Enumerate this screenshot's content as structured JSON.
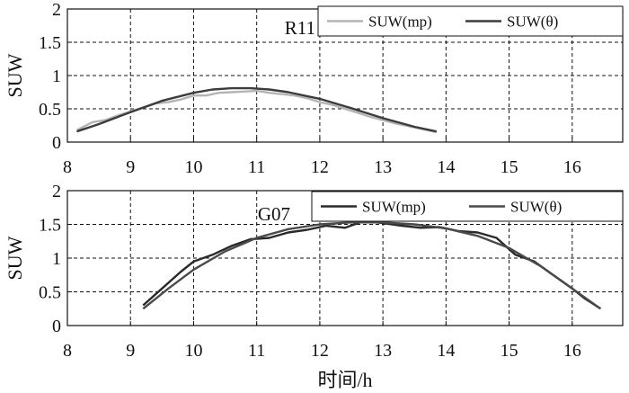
{
  "chart_data": [
    {
      "type": "line",
      "label": "R11",
      "ylabel": "SUW",
      "xlim": [
        8,
        16.8
      ],
      "ylim": [
        0,
        2
      ],
      "xticks": [
        8,
        9,
        10,
        11,
        12,
        13,
        14,
        15,
        16
      ],
      "yticks": [
        0,
        0.5,
        1,
        1.5,
        2
      ],
      "ytick_labels": [
        "0",
        "0.5",
        "1",
        "1.5",
        "2"
      ],
      "grid": true,
      "legend_position": "top-right",
      "series": [
        {
          "name": "SUW(mp)",
          "color": "#b4b4b4",
          "x": [
            8.15,
            8.4,
            8.6,
            8.8,
            9.0,
            9.2,
            9.4,
            9.6,
            9.8,
            10.0,
            10.2,
            10.4,
            10.6,
            10.8,
            11.0,
            11.2,
            11.4,
            11.6,
            11.8,
            12.0,
            12.2,
            12.4,
            12.6,
            12.8,
            13.0,
            13.2,
            13.4,
            13.6,
            13.85
          ],
          "y": [
            0.18,
            0.3,
            0.33,
            0.4,
            0.46,
            0.52,
            0.58,
            0.6,
            0.64,
            0.7,
            0.7,
            0.74,
            0.75,
            0.76,
            0.77,
            0.74,
            0.72,
            0.7,
            0.66,
            0.6,
            0.56,
            0.5,
            0.44,
            0.38,
            0.33,
            0.28,
            0.24,
            0.2,
            0.15
          ]
        },
        {
          "name": "SUW(θ)",
          "color": "#3c3c3c",
          "x": [
            8.15,
            8.5,
            9.0,
            9.5,
            10.0,
            10.3,
            10.6,
            10.9,
            11.2,
            11.5,
            12.0,
            12.5,
            13.0,
            13.5,
            13.85
          ],
          "y": [
            0.16,
            0.27,
            0.45,
            0.62,
            0.74,
            0.79,
            0.81,
            0.81,
            0.79,
            0.75,
            0.65,
            0.51,
            0.36,
            0.23,
            0.16
          ]
        }
      ]
    },
    {
      "type": "line",
      "label": "G07",
      "ylabel": "SUW",
      "xlabel": "时间/h",
      "xlim": [
        8,
        16.8
      ],
      "ylim": [
        0,
        2
      ],
      "xticks": [
        8,
        9,
        10,
        11,
        12,
        13,
        14,
        15,
        16
      ],
      "yticks": [
        0,
        0.5,
        1,
        1.5,
        2
      ],
      "ytick_labels": [
        "0",
        "0.5",
        "1",
        "1.5",
        "2"
      ],
      "grid": true,
      "legend_position": "top-right",
      "series": [
        {
          "name": "SUW(mp)",
          "color": "#2a2a2a",
          "x": [
            9.2,
            9.5,
            9.8,
            10.0,
            10.3,
            10.6,
            10.9,
            11.2,
            11.5,
            11.8,
            12.1,
            12.4,
            12.7,
            13.0,
            13.3,
            13.6,
            13.9,
            14.2,
            14.5,
            14.8,
            15.1,
            15.4,
            15.7,
            16.0,
            16.2,
            16.45
          ],
          "y": [
            0.3,
            0.55,
            0.8,
            0.95,
            1.05,
            1.18,
            1.28,
            1.3,
            1.38,
            1.42,
            1.48,
            1.45,
            1.55,
            1.52,
            1.48,
            1.45,
            1.46,
            1.4,
            1.38,
            1.3,
            1.05,
            0.95,
            0.75,
            0.55,
            0.4,
            0.25
          ]
        },
        {
          "name": "SUW(θ)",
          "color": "#4a4a4a",
          "x": [
            9.2,
            9.6,
            10.0,
            10.5,
            11.0,
            11.5,
            12.0,
            12.5,
            13.0,
            13.5,
            14.0,
            14.5,
            15.0,
            15.5,
            16.0,
            16.45
          ],
          "y": [
            0.25,
            0.55,
            0.83,
            1.1,
            1.3,
            1.43,
            1.5,
            1.53,
            1.53,
            1.5,
            1.44,
            1.33,
            1.15,
            0.88,
            0.55,
            0.25
          ]
        }
      ]
    }
  ]
}
